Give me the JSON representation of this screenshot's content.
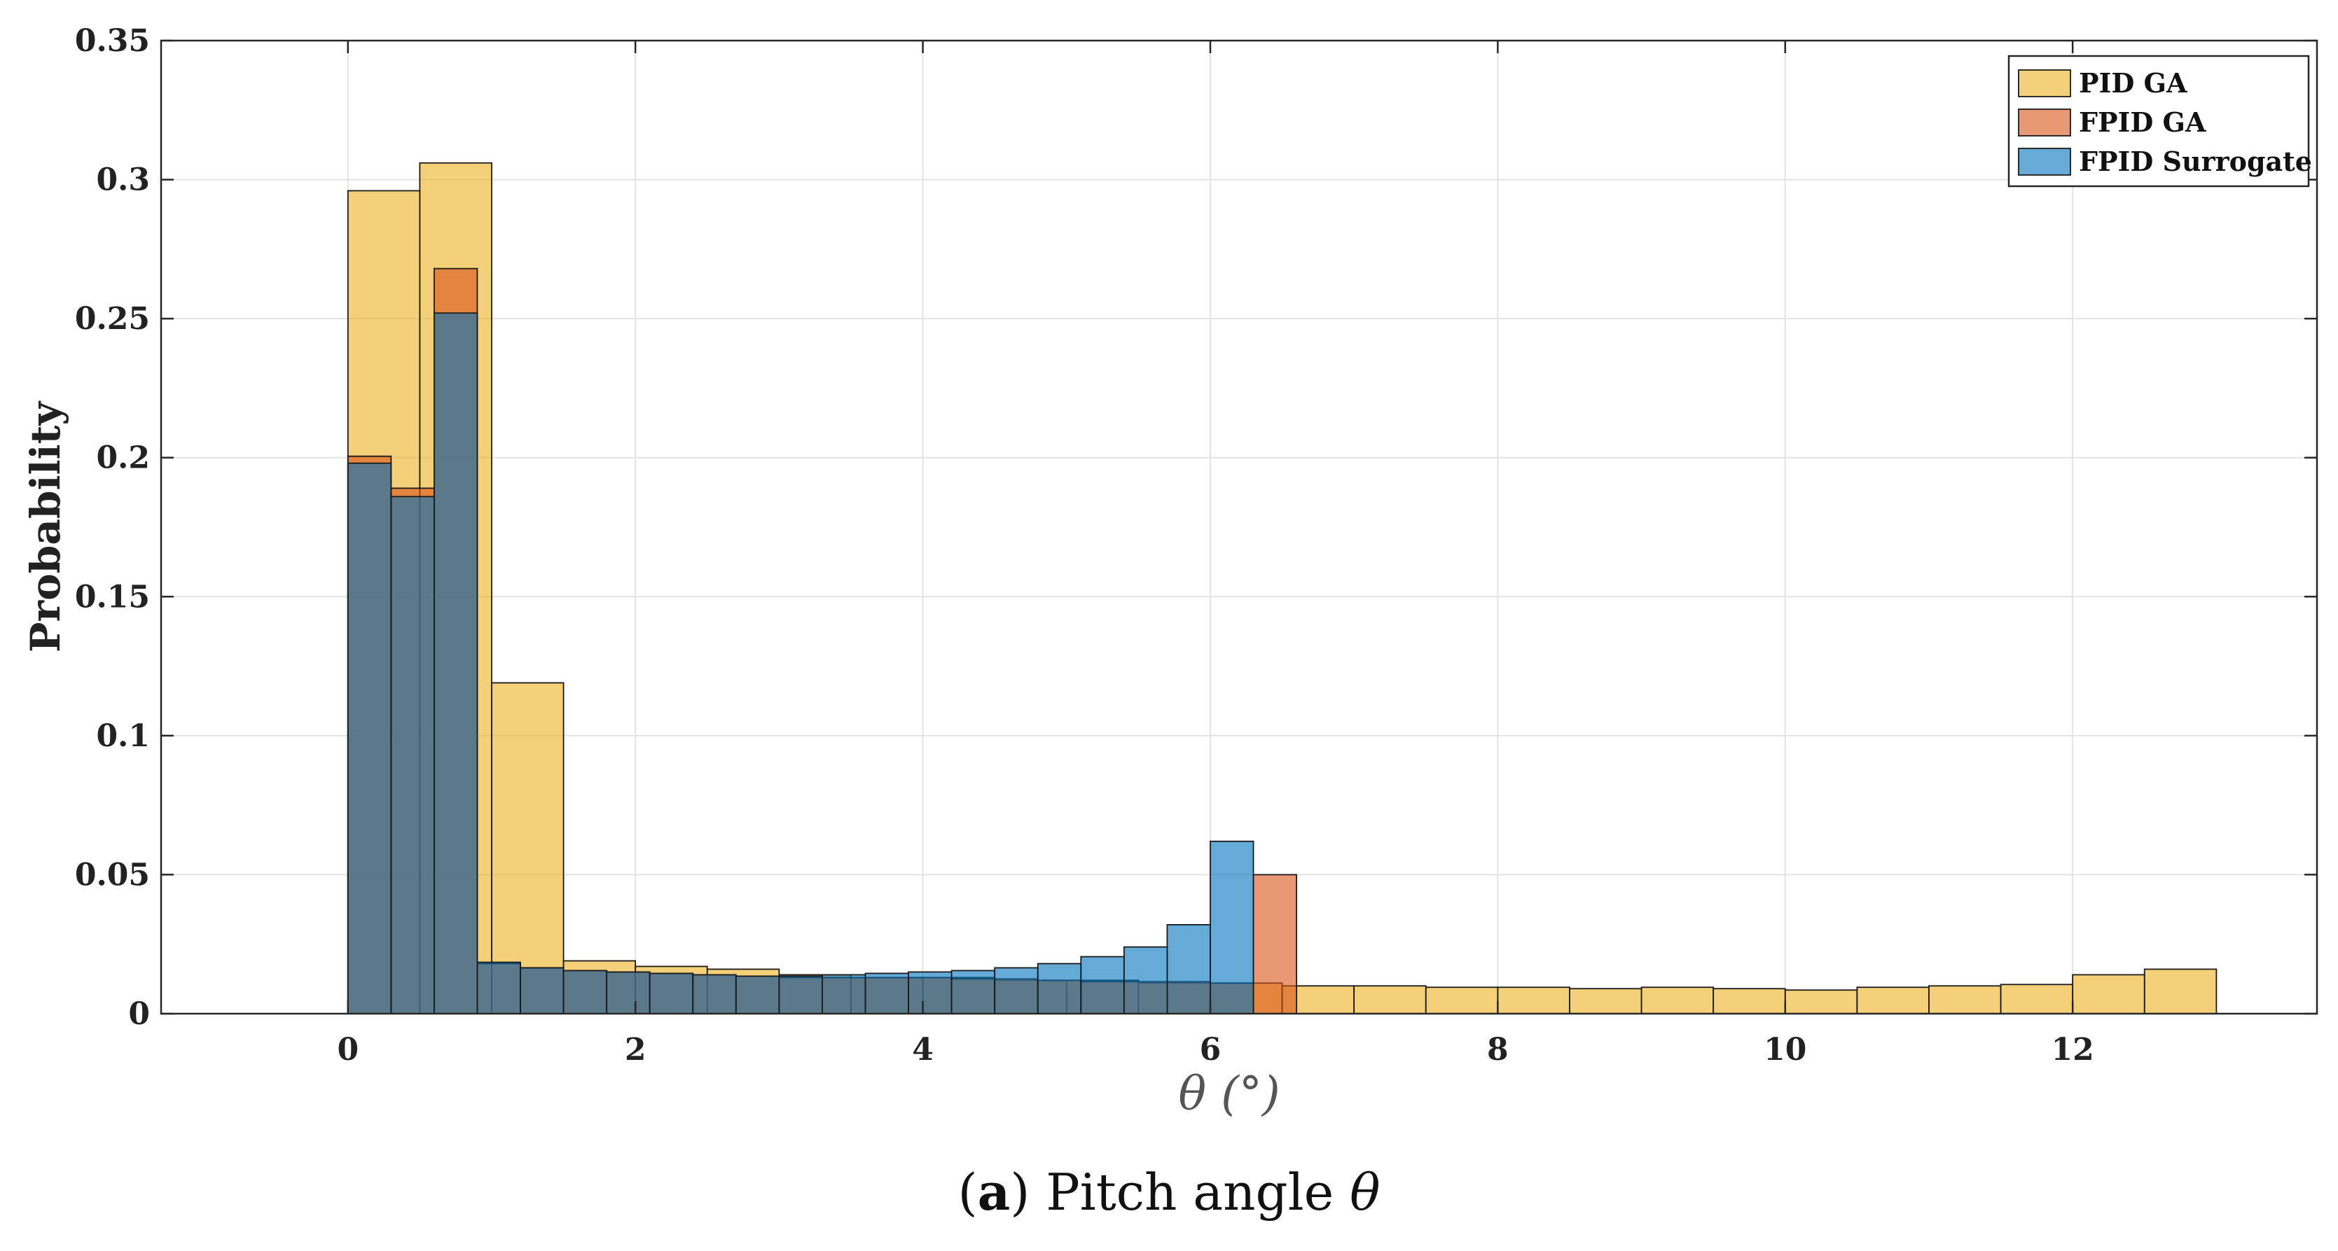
{
  "colors": {
    "pid_ga": "#EDB120",
    "fpid_ga": "#D95319",
    "fpid_surrogate": "#0072BD",
    "grid": "#e3e3e3",
    "axis": "#262626"
  },
  "caption": {
    "open": "(",
    "letter": "a",
    "rest": ") Pitch angle ",
    "symbol": "θ"
  },
  "chart_data": {
    "type": "bar",
    "subtype": "histogram",
    "title": "",
    "xlabel": "θ (°)",
    "ylabel": "Probability",
    "xlim": [
      -1.3,
      13.7
    ],
    "ylim": [
      0,
      0.35
    ],
    "xticks": [
      0,
      2,
      4,
      6,
      8,
      10,
      12
    ],
    "xtick_labels": [
      "0",
      "2",
      "4",
      "6",
      "8",
      "10",
      "12"
    ],
    "yticks": [
      0,
      0.05,
      0.1,
      0.15,
      0.2,
      0.25,
      0.3,
      0.35
    ],
    "ytick_labels": [
      "0",
      "0.05",
      "0.1",
      "0.15",
      "0.2",
      "0.25",
      "0.3",
      "0.35"
    ],
    "grid": true,
    "legend_position": "top-right",
    "series": [
      {
        "name": "PID GA",
        "color_key": "pid_ga",
        "bin_edges": [
          0,
          0.5,
          1,
          1.5,
          2,
          2.5,
          3,
          3.5,
          4,
          4.5,
          5,
          5.5,
          6,
          6.5,
          7,
          7.5,
          8,
          8.5,
          9,
          9.5,
          10,
          10.5,
          11,
          11.5,
          12,
          12.5,
          13
        ],
        "values": [
          0.296,
          0.306,
          0.119,
          0.019,
          0.017,
          0.016,
          0.014,
          0.013,
          0.013,
          0.012,
          0.012,
          0.011,
          0.011,
          0.01,
          0.01,
          0.0095,
          0.0095,
          0.009,
          0.0095,
          0.009,
          0.0085,
          0.0095,
          0.01,
          0.0105,
          0.014,
          0.016
        ]
      },
      {
        "name": "FPID GA",
        "color_key": "fpid_ga",
        "bin_edges": [
          0,
          0.3,
          0.6,
          0.9,
          1.2,
          1.5,
          1.8,
          2.1,
          2.4,
          2.7,
          3.0,
          3.3,
          3.6,
          3.9,
          4.2,
          4.5,
          4.8,
          5.1,
          5.4,
          5.7,
          6.0,
          6.3,
          6.6
        ],
        "values": [
          0.2005,
          0.189,
          0.268,
          0.018,
          0.0165,
          0.0155,
          0.015,
          0.0145,
          0.014,
          0.0135,
          0.013,
          0.013,
          0.013,
          0.013,
          0.0125,
          0.0125,
          0.012,
          0.0115,
          0.0115,
          0.0115,
          0.011,
          0.05
        ]
      },
      {
        "name": "FPID Surrogate",
        "color_key": "fpid_surrogate",
        "bin_edges": [
          0,
          0.3,
          0.6,
          0.9,
          1.2,
          1.5,
          1.8,
          2.1,
          2.4,
          2.7,
          3.0,
          3.3,
          3.6,
          3.9,
          4.2,
          4.5,
          4.8,
          5.1,
          5.4,
          5.7,
          6.0,
          6.3
        ],
        "values": [
          0.198,
          0.186,
          0.252,
          0.0185,
          0.0165,
          0.0155,
          0.015,
          0.0145,
          0.014,
          0.0135,
          0.0135,
          0.014,
          0.0145,
          0.015,
          0.0155,
          0.0165,
          0.018,
          0.0205,
          0.024,
          0.032,
          0.062
        ]
      }
    ]
  }
}
